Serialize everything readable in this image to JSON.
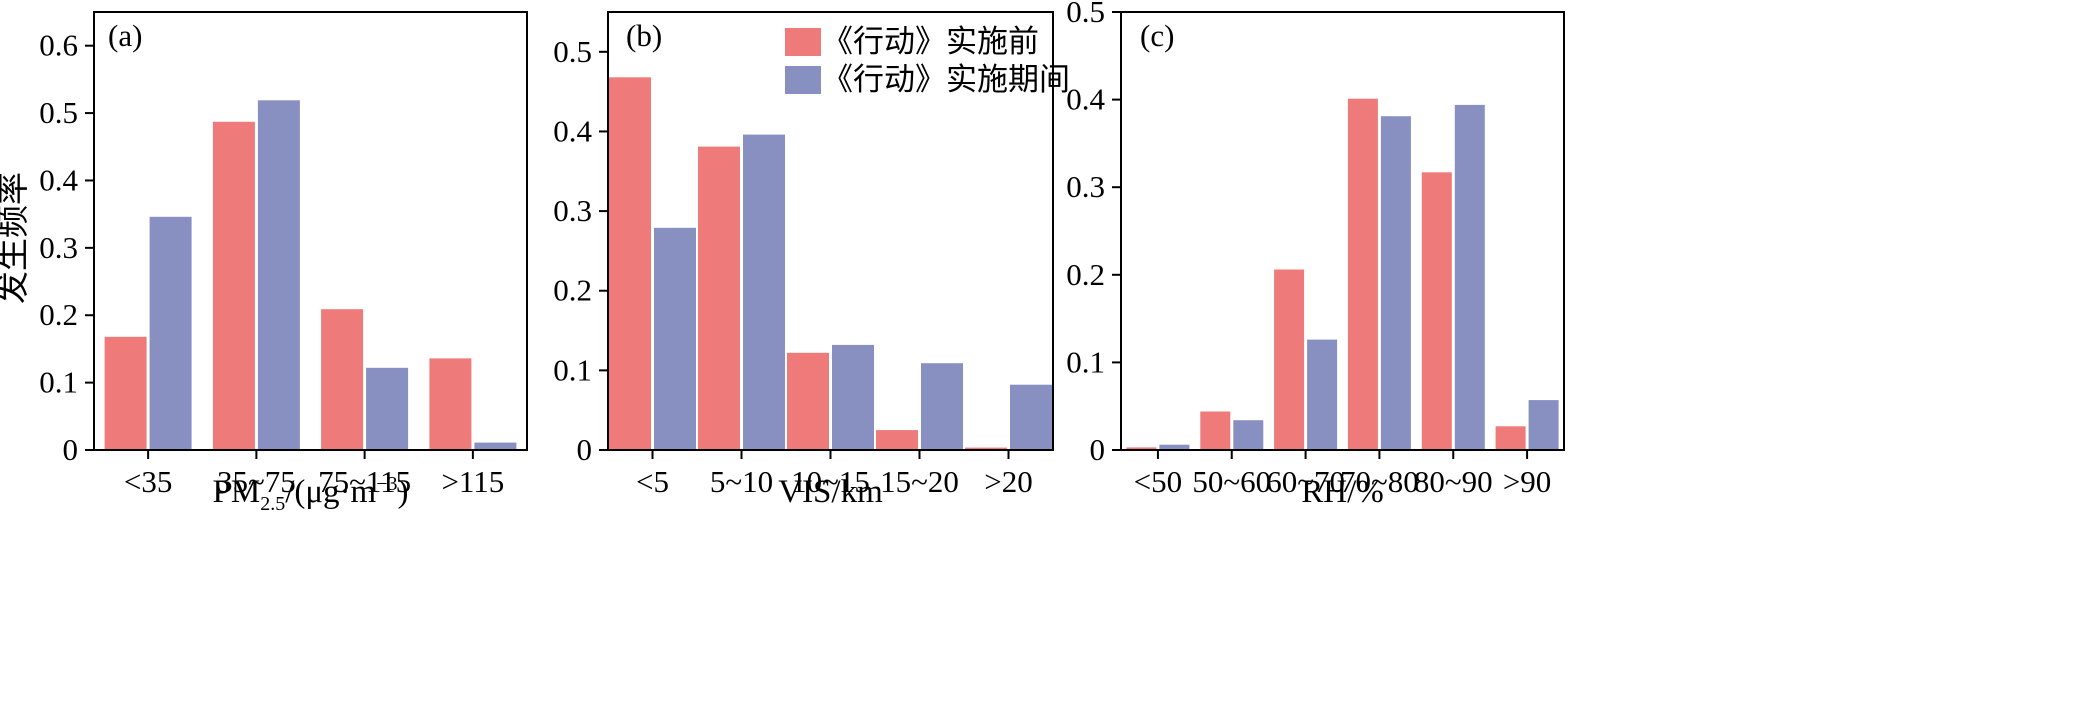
{
  "shared": {
    "ylabel": "发生频率",
    "colors": {
      "before": "#ef7a7a",
      "during": "#8890c2"
    },
    "legend": {
      "before": "《行动》实施前",
      "during": "《行动》实施期间"
    }
  },
  "chart_data": [
    {
      "type": "bar",
      "panel_label": "(a)",
      "categories": [
        "<35",
        "35~75",
        "75~115",
        ">115"
      ],
      "series": [
        {
          "name": "《行动》实施前",
          "values": [
            0.168,
            0.487,
            0.209,
            0.136
          ]
        },
        {
          "name": "《行动》实施期间",
          "values": [
            0.346,
            0.519,
            0.122,
            0.011
          ]
        }
      ],
      "ylim": [
        0,
        0.65
      ],
      "yticks": [
        "0",
        "0.1",
        "0.2",
        "0.3",
        "0.4",
        "0.5",
        "0.6"
      ],
      "xlabel_main": "PM",
      "xlabel_sub": "2.5",
      "xlabel_mid": "/(μg·m",
      "xlabel_sup": "−3",
      "xlabel_end": ")"
    },
    {
      "type": "bar",
      "panel_label": "(b)",
      "categories": [
        "<5",
        "5~10",
        "10~15",
        "15~20",
        ">20"
      ],
      "series": [
        {
          "name": "《行动》实施前",
          "values": [
            0.468,
            0.381,
            0.122,
            0.025,
            0.003
          ]
        },
        {
          "name": "《行动》实施期间",
          "values": [
            0.279,
            0.396,
            0.132,
            0.109,
            0.082
          ]
        }
      ],
      "ylim": [
        0,
        0.55
      ],
      "yticks": [
        "0",
        "0.1",
        "0.2",
        "0.3",
        "0.4",
        "0.5"
      ],
      "xlabel": "VIS/km",
      "legend_position": "top-right"
    },
    {
      "type": "bar",
      "panel_label": "(c)",
      "categories": [
        "<50",
        "50~60",
        "60~70",
        "70~80",
        "80~90",
        ">90"
      ],
      "series": [
        {
          "name": "《行动》实施前",
          "values": [
            0.003,
            0.044,
            0.206,
            0.401,
            0.317,
            0.027
          ]
        },
        {
          "name": "《行动》实施期间",
          "values": [
            0.006,
            0.034,
            0.126,
            0.381,
            0.394,
            0.057
          ]
        }
      ],
      "ylim": [
        0,
        0.5
      ],
      "yticks": [
        "0",
        "0.1",
        "0.2",
        "0.3",
        "0.4",
        "0.5"
      ],
      "xlabel": "RH/%"
    }
  ]
}
